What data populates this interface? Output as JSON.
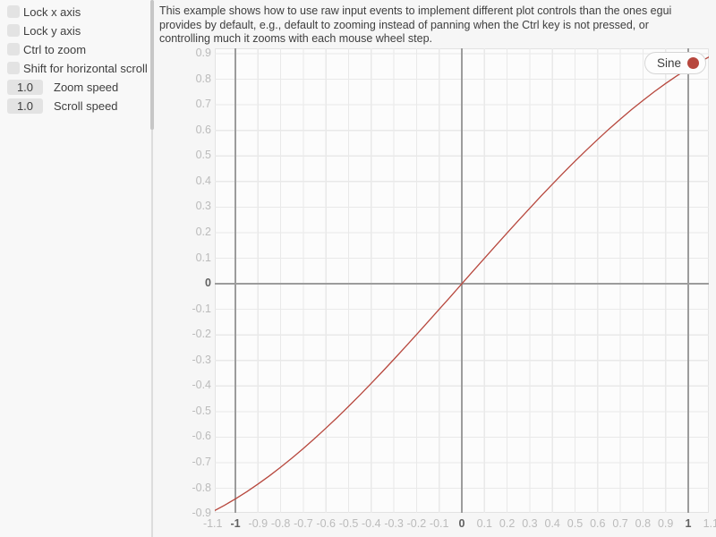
{
  "sidebar": {
    "checkboxes": [
      {
        "label": "Lock x axis",
        "checked": false
      },
      {
        "label": "Lock y axis",
        "checked": false
      },
      {
        "label": "Ctrl to zoom",
        "checked": false
      },
      {
        "label": "Shift for horizontal scroll",
        "checked": false
      }
    ],
    "drag_values": [
      {
        "value": "1.0",
        "label": "Zoom speed"
      },
      {
        "value": "1.0",
        "label": "Scroll speed"
      }
    ]
  },
  "description": {
    "lines": [
      "This example shows how to use raw input events to implement different plot controls than the ones egui",
      "provides by default, e.g., default to zooming instead of panning when the Ctrl key is not pressed, or",
      "controlling much it zooms with each mouse wheel step."
    ]
  },
  "chart_data": {
    "type": "line",
    "title": "",
    "xlabel": "",
    "ylabel": "",
    "grid": true,
    "xlim": [
      -1.091,
      1.091
    ],
    "ylim": [
      -0.896,
      0.921
    ],
    "x_ticks": [
      "-1.1",
      "-1",
      "-0.9",
      "-0.8",
      "-0.7",
      "-0.6",
      "-0.5",
      "-0.4",
      "-0.3",
      "-0.2",
      "-0.1",
      "0",
      "0.1",
      "0.2",
      "0.3",
      "0.4",
      "0.5",
      "0.6",
      "0.7",
      "0.8",
      "0.9",
      "1",
      "1.1"
    ],
    "y_ticks": [
      "0.9",
      "0.8",
      "0.7",
      "0.6",
      "0.5",
      "0.4",
      "0.3",
      "0.2",
      "0.1",
      "0",
      "-0.1",
      "-0.2",
      "-0.3",
      "-0.4",
      "-0.5",
      "-0.6",
      "-0.7",
      "-0.8",
      "-0.9"
    ],
    "x_major_ticks": [
      "-1",
      "0",
      "1"
    ],
    "y_major_ticks": [
      "0"
    ],
    "legend": {
      "position": "top-right",
      "entries": [
        {
          "label": "Sine",
          "color": "#b7473d"
        }
      ]
    },
    "series": [
      {
        "name": "Sine",
        "color": "#b7473d",
        "points": [
          [
            -1.1,
            -0.8912
          ],
          [
            -1.05,
            -0.8674
          ],
          [
            -1,
            -0.8415
          ],
          [
            -0.95,
            -0.8134
          ],
          [
            -0.9,
            -0.7833
          ],
          [
            -0.85,
            -0.7513
          ],
          [
            -0.8,
            -0.7174
          ],
          [
            -0.75,
            -0.6816
          ],
          [
            -0.7,
            -0.6442
          ],
          [
            -0.65,
            -0.6052
          ],
          [
            -0.6,
            -0.5646
          ],
          [
            -0.55,
            -0.5227
          ],
          [
            -0.5,
            -0.4794
          ],
          [
            -0.45,
            -0.435
          ],
          [
            -0.4,
            -0.3894
          ],
          [
            -0.35,
            -0.3429
          ],
          [
            -0.3,
            -0.2955
          ],
          [
            -0.25,
            -0.2474
          ],
          [
            -0.2,
            -0.1987
          ],
          [
            -0.15,
            -0.1494
          ],
          [
            -0.1,
            -0.0998
          ],
          [
            -0.05,
            -0.05
          ],
          [
            0,
            0
          ],
          [
            0.05,
            0.05
          ],
          [
            0.1,
            0.0998
          ],
          [
            0.15,
            0.1494
          ],
          [
            0.2,
            0.1987
          ],
          [
            0.25,
            0.2474
          ],
          [
            0.3,
            0.2955
          ],
          [
            0.35,
            0.3429
          ],
          [
            0.4,
            0.3894
          ],
          [
            0.45,
            0.435
          ],
          [
            0.5,
            0.4794
          ],
          [
            0.55,
            0.5227
          ],
          [
            0.6,
            0.5646
          ],
          [
            0.65,
            0.6052
          ],
          [
            0.7,
            0.6442
          ],
          [
            0.75,
            0.6816
          ],
          [
            0.8,
            0.7174
          ],
          [
            0.85,
            0.7513
          ],
          [
            0.9,
            0.7833
          ],
          [
            0.95,
            0.8134
          ],
          [
            1,
            0.8415
          ],
          [
            1.05,
            0.8674
          ],
          [
            1.1,
            0.8912
          ]
        ]
      }
    ]
  },
  "colors": {
    "curve_red": "#b7473d",
    "plot_background": "#fcfcfc",
    "grid_minor": "#e9e9e9",
    "grid_major": "#9c9c9c",
    "tick_minor_text": "#bbbbbb",
    "tick_major_text": "#616161"
  }
}
